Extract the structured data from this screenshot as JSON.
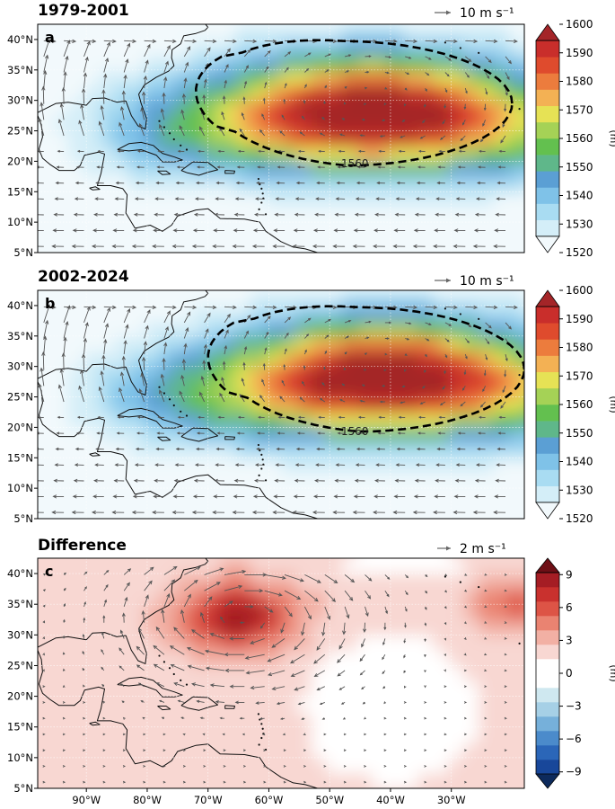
{
  "figure": {
    "lat_ticks": [
      "40°N",
      "35°N",
      "30°N",
      "25°N",
      "20°N",
      "15°N",
      "10°N",
      "5°N"
    ],
    "lon_ticks": [
      "90°W",
      "80°W",
      "70°W",
      "60°W",
      "50°W",
      "40°W",
      "30°W"
    ],
    "lat_values": [
      40,
      35,
      30,
      25,
      20,
      15,
      10,
      5
    ],
    "lon_values": [
      -90,
      -80,
      -70,
      -60,
      -50,
      -40,
      -30
    ],
    "extent": {
      "lon_min": -98,
      "lon_max": -18,
      "lat_min": 5,
      "lat_max": 42.5
    }
  },
  "panels": [
    {
      "id": "a",
      "title": "1979-2001",
      "letter": "a",
      "vector_label": "10 m s⁻¹",
      "field_type": "abs",
      "contour_label": "1560",
      "colorbar": {
        "unit": "(m)",
        "ticks": [
          "1600",
          "1590",
          "1580",
          "1570",
          "1560",
          "1550",
          "1540",
          "1530",
          "1520"
        ],
        "min": 1520,
        "max": 1600,
        "colors": [
          "#f2f9fc",
          "#d4eef8",
          "#a9dcf2",
          "#7fc2e8",
          "#5b9fd4",
          "#5fb78a",
          "#63c04f",
          "#a5d256",
          "#e6e255",
          "#f3b154",
          "#ec7c3d",
          "#df4b2d",
          "#c92e2b",
          "#a42528"
        ]
      }
    },
    {
      "id": "b",
      "title": "2002-2024",
      "letter": "b",
      "vector_label": "10 m s⁻¹",
      "field_type": "abs",
      "contour_label": "1560",
      "colorbar": {
        "unit": "(m)",
        "ticks": [
          "1600",
          "1590",
          "1580",
          "1570",
          "1560",
          "1550",
          "1540",
          "1530",
          "1520"
        ],
        "min": 1520,
        "max": 1600,
        "colors": [
          "#f2f9fc",
          "#d4eef8",
          "#a9dcf2",
          "#7fc2e8",
          "#5b9fd4",
          "#5fb78a",
          "#63c04f",
          "#a5d256",
          "#e6e255",
          "#f3b154",
          "#ec7c3d",
          "#df4b2d",
          "#c92e2b",
          "#a42528"
        ]
      }
    },
    {
      "id": "c",
      "title": "Difference",
      "letter": "c",
      "vector_label": "2 m s⁻¹",
      "field_type": "diff",
      "contour_label": "",
      "colorbar": {
        "unit": "(m)",
        "ticks": [
          "9",
          "6",
          "3",
          "0",
          "−3",
          "−6",
          "−9"
        ],
        "min": -10.5,
        "max": 10.5,
        "colors": [
          "#0d2a5c",
          "#18479a",
          "#2b66b8",
          "#4b8bcb",
          "#76b0da",
          "#a6d0e6",
          "#cfe8f0",
          "#ffffff",
          "#ffffff",
          "#f8d7d2",
          "#f2b0a4",
          "#ea8371",
          "#dd5446",
          "#c9312e",
          "#a51d24",
          "#6e0f16"
        ]
      }
    }
  ]
}
